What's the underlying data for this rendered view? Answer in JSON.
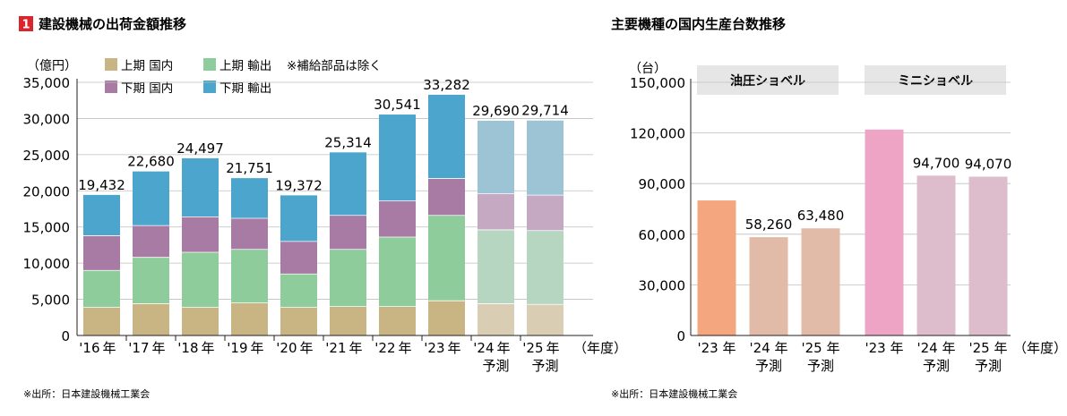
{
  "left_chart": {
    "number_badge": "1",
    "title": "建設機械の出荷金額推移",
    "unit": "（億円）",
    "note": "※補給部品は除く",
    "source": "※出所：日本建設機械工業会",
    "x_unit": "（年度）",
    "colors": {
      "h1_domestic": "#c9b583",
      "h1_export": "#8fcc9b",
      "h2_domestic": "#a77ba4",
      "h2_export": "#4ba5cc",
      "h1_domestic_forecast": "#d9cdb3",
      "h1_export_forecast": "#b7d6c2",
      "h2_domestic_forecast": "#c5a9c3",
      "h2_export_forecast": "#9cc4d5"
    }
  },
  "right_chart": {
    "title": "主要機種の国内生産台数推移",
    "unit": "（台）",
    "source": "※出所：日本建設機械工業会",
    "x_unit": "（年度）",
    "group_labels": [
      "油圧ショベル",
      "ミニショベル"
    ],
    "colors": {
      "hydraulic_actual": "#f4a77f",
      "hydraulic_forecast": "#e2bba8",
      "mini_actual": "#eea5c5",
      "mini_forecast": "#ddbdcb",
      "group_label_bg": "#e6e6e6"
    }
  },
  "chart_data": [
    {
      "type": "bar",
      "stacked": true,
      "title": "建設機械の出荷金額推移",
      "ylabel": "（億円）",
      "ylim": [
        0,
        35000
      ],
      "yticks": [
        "0",
        "5,000",
        "10,000",
        "15,000",
        "20,000",
        "25,000",
        "30,000",
        "35,000"
      ],
      "categories": [
        "'16年",
        "'17年",
        "'18年",
        "'19年",
        "'20年",
        "'21年",
        "'22年",
        "'23年",
        "'24年",
        "'25年"
      ],
      "category_lines": [
        [
          "'16",
          "年"
        ],
        [
          "'17",
          "年"
        ],
        [
          "'18",
          "年"
        ],
        [
          "'19",
          "年"
        ],
        [
          "'20",
          "年"
        ],
        [
          "'21",
          "年"
        ],
        [
          "'22",
          "年"
        ],
        [
          "'23",
          "年"
        ],
        [
          "'24",
          "年"
        ],
        [
          "'25",
          "年"
        ]
      ],
      "forecast_label": "予測",
      "forecast": [
        false,
        false,
        false,
        false,
        false,
        false,
        false,
        false,
        true,
        true
      ],
      "series": [
        {
          "name": "上期 国内",
          "values": [
            3900,
            4400,
            3900,
            4500,
            3900,
            4000,
            4000,
            4800,
            4400,
            4300
          ]
        },
        {
          "name": "上期 輸出",
          "values": [
            5100,
            6400,
            7600,
            7400,
            4600,
            7900,
            9600,
            11800,
            10200,
            10200
          ]
        },
        {
          "name": "下期 国内",
          "values": [
            4800,
            4400,
            4900,
            4300,
            4500,
            4700,
            5000,
            5100,
            5000,
            4900
          ]
        },
        {
          "name": "下期 輸出",
          "values": [
            5632,
            7480,
            8097,
            5551,
            6372,
            8714,
            11941,
            11582,
            10090,
            10314
          ]
        }
      ],
      "totals": [
        19432,
        22680,
        24497,
        21751,
        19372,
        25314,
        30541,
        33282,
        29690,
        29714
      ],
      "total_labels": [
        "19,432",
        "22,680",
        "24,497",
        "21,751",
        "19,372",
        "25,314",
        "30,541",
        "33,282",
        "29,690",
        "29,714"
      ],
      "legend": [
        "上期 国内",
        "上期 輸出",
        "下期 国内",
        "下期 輸出"
      ],
      "legend_position": "top-left"
    },
    {
      "type": "bar",
      "title": "主要機種の国内生産台数推移",
      "ylabel": "（台）",
      "ylim": [
        0,
        150000
      ],
      "yticks": [
        "0",
        "30,000",
        "60,000",
        "90,000",
        "120,000",
        "150,000"
      ],
      "groups": [
        {
          "name": "油圧ショベル",
          "categories": [
            "'23年",
            "'24年",
            "'25年"
          ],
          "category_lines": [
            [
              "'23 年"
            ],
            [
              "'24 年",
              "予測"
            ],
            [
              "'25 年",
              "予測"
            ]
          ],
          "values": [
            80000,
            58260,
            63480
          ],
          "value_labels": [
            "",
            "58,260",
            "63,480"
          ],
          "forecast": [
            false,
            true,
            true
          ]
        },
        {
          "name": "ミニショベル",
          "categories": [
            "'23年",
            "'24年",
            "'25年"
          ],
          "category_lines": [
            [
              "'23 年"
            ],
            [
              "'24 年",
              "予測"
            ],
            [
              "'25 年",
              "予測"
            ]
          ],
          "values": [
            122000,
            94700,
            94070
          ],
          "value_labels": [
            "",
            "94,700",
            "94,070"
          ],
          "forecast": [
            false,
            true,
            true
          ]
        }
      ]
    }
  ]
}
